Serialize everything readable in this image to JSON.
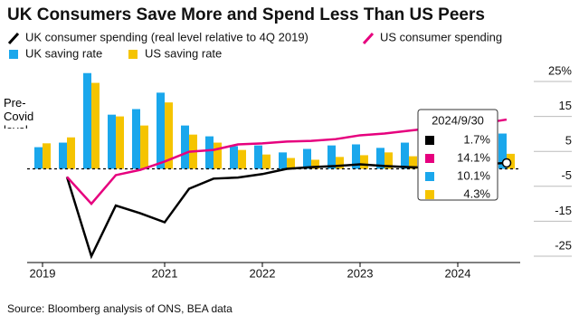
{
  "chart_data": {
    "type": "bar-line",
    "title": "UK Consumers Save More and Spend Less Than US Peers",
    "source": "Source: Bloomberg analysis of ONS, BEA data",
    "annotation": "Pre-Covid level",
    "categories": [
      "2019",
      null,
      null,
      null,
      null,
      "2021",
      null,
      null,
      null,
      "2022",
      null,
      null,
      null,
      "2023",
      null,
      null,
      null,
      "2024",
      null,
      null
    ],
    "series": [
      {
        "name": "UK consumer spending (real level relative to 4Q 2019)",
        "type": "line",
        "color": "#000000",
        "values": [
          null,
          -2.3,
          -25,
          -10.5,
          -12.7,
          -15.3,
          -5.7,
          -2.8,
          -2.5,
          -1.5,
          0,
          0.5,
          0.8,
          1.3,
          0.8,
          0.5,
          0.3,
          0.8,
          1.3,
          1.7
        ]
      },
      {
        "name": "US consumer spending",
        "type": "line",
        "color": "#e6007e",
        "values": [
          null,
          -2.3,
          -10,
          -1.8,
          -0.3,
          2.1,
          4.9,
          5.4,
          7,
          7.3,
          7.8,
          8,
          8.5,
          9.6,
          10.1,
          10.9,
          11.7,
          12.4,
          13,
          14.1
        ]
      },
      {
        "name": "UK saving rate",
        "type": "bar",
        "color": "#1aa7ec",
        "values": [
          6.2,
          7.5,
          27.4,
          15.5,
          17.1,
          21.8,
          12.4,
          9.3,
          6.5,
          6.7,
          4.7,
          5.7,
          6.7,
          7,
          6,
          7.5,
          9.3,
          7.5,
          9.3,
          10.1
        ]
      },
      {
        "name": "US saving rate",
        "type": "bar",
        "color": "#f5c400",
        "values": [
          7.3,
          9,
          24.6,
          15,
          12.4,
          19,
          9.8,
          7.5,
          5.4,
          4.1,
          3.1,
          2.6,
          3.4,
          3.9,
          4.7,
          3.6,
          4.7,
          3.1,
          4.1,
          4.3
        ]
      }
    ],
    "ylim": [
      -25,
      30
    ],
    "yticks": [
      {
        "value": 25,
        "label": "25%"
      },
      15,
      5,
      -5,
      -15,
      -25
    ],
    "tooltip": {
      "title": "2024/9/30",
      "labels": [
        "1.7%",
        "14.1%",
        "10.1%",
        "4.3%"
      ]
    }
  }
}
